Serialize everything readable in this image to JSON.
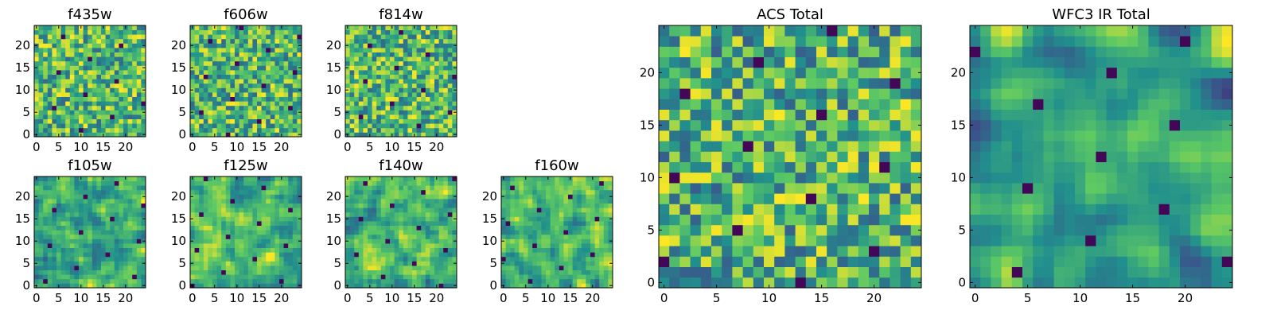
{
  "colormap": [
    "#440154",
    "#3b528b",
    "#21908d",
    "#5dc963",
    "#fde725"
  ],
  "chart_data": [
    {
      "type": "heatmap",
      "title": "f435w",
      "size": 25,
      "seed": 11,
      "smooth": 0,
      "vmax_floor": 0.35,
      "xticks": [
        0,
        5,
        10,
        15,
        20
      ],
      "yticks": [
        0,
        5,
        10,
        15,
        20
      ],
      "xlim": [
        0,
        25
      ],
      "ylim": [
        0,
        25
      ]
    },
    {
      "type": "heatmap",
      "title": "f606w",
      "size": 25,
      "seed": 23,
      "smooth": 0,
      "vmax_floor": 0.35,
      "xticks": [
        0,
        5,
        10,
        15,
        20
      ],
      "yticks": [
        0,
        5,
        10,
        15,
        20
      ],
      "xlim": [
        0,
        25
      ],
      "ylim": [
        0,
        25
      ]
    },
    {
      "type": "heatmap",
      "title": "f814w",
      "size": 25,
      "seed": 37,
      "smooth": 0,
      "vmax_floor": 0.35,
      "xticks": [
        0,
        5,
        10,
        15,
        20
      ],
      "yticks": [
        0,
        5,
        10,
        15,
        20
      ],
      "xlim": [
        0,
        25
      ],
      "ylim": [
        0,
        25
      ]
    },
    {
      "type": "heatmap",
      "title": "f105w",
      "size": 25,
      "seed": 41,
      "smooth": 1,
      "vmax_floor": 0.3,
      "xticks": [
        0,
        5,
        10,
        15,
        20
      ],
      "yticks": [
        0,
        5,
        10,
        15,
        20
      ],
      "xlim": [
        0,
        25
      ],
      "ylim": [
        0,
        25
      ]
    },
    {
      "type": "heatmap",
      "title": "f125w",
      "size": 25,
      "seed": 53,
      "smooth": 1,
      "vmax_floor": 0.3,
      "xticks": [
        0,
        5,
        10,
        15,
        20
      ],
      "yticks": [
        0,
        5,
        10,
        15,
        20
      ],
      "xlim": [
        0,
        25
      ],
      "ylim": [
        0,
        25
      ]
    },
    {
      "type": "heatmap",
      "title": "f140w",
      "size": 25,
      "seed": 67,
      "smooth": 1,
      "vmax_floor": 0.3,
      "xticks": [
        0,
        5,
        10,
        15,
        20
      ],
      "yticks": [
        0,
        5,
        10,
        15,
        20
      ],
      "xlim": [
        0,
        25
      ],
      "ylim": [
        0,
        25
      ]
    },
    {
      "type": "heatmap",
      "title": "f160w",
      "size": 25,
      "seed": 79,
      "smooth": 1,
      "vmax_floor": 0.3,
      "xticks": [
        0,
        5,
        10,
        15,
        20
      ],
      "yticks": [
        0,
        5,
        10,
        15,
        20
      ],
      "xlim": [
        0,
        25
      ],
      "ylim": [
        0,
        25
      ]
    },
    {
      "type": "heatmap",
      "title": "ACS Total",
      "size": 25,
      "seed": 97,
      "smooth": 0,
      "vmax_floor": 0.3,
      "xticks": [
        0,
        5,
        10,
        15,
        20
      ],
      "yticks": [
        0,
        5,
        10,
        15,
        20
      ],
      "xlim": [
        0,
        25
      ],
      "ylim": [
        0,
        25
      ]
    },
    {
      "type": "heatmap",
      "title": "WFC3 IR Total",
      "size": 25,
      "seed": 113,
      "smooth": 2,
      "vmax_floor": 0.2,
      "xticks": [
        0,
        5,
        10,
        15,
        20
      ],
      "yticks": [
        0,
        5,
        10,
        15,
        20
      ],
      "xlim": [
        0,
        25
      ],
      "ylim": [
        0,
        25
      ]
    }
  ]
}
